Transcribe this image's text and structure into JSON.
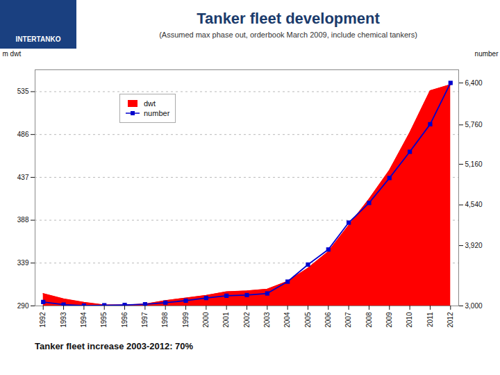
{
  "chart_data": {
    "type": "line",
    "title": "Tanker fleet development",
    "subtitle": "(Assumed max phase out, orderbook March 2009, include chemical  tankers)",
    "annotations": [
      "INTERTANKO",
      "Tanker fleet increase 2003-2012: 70%"
    ],
    "ylabel": "m dwt",
    "y2label": "number",
    "x": [
      1992,
      1993,
      1994,
      1995,
      1996,
      1997,
      1998,
      1999,
      2000,
      2001,
      2002,
      2003,
      2004,
      2005,
      2006,
      2007,
      2008,
      2009,
      2010,
      2011,
      2012
    ],
    "xlim": [
      1991.6,
      2012.4
    ],
    "xticks": [
      1992,
      1993,
      1994,
      1995,
      1996,
      1997,
      1998,
      1999,
      2000,
      2001,
      2002,
      2003,
      2004,
      2005,
      2006,
      2007,
      2008,
      2009,
      2010,
      2011,
      2012
    ],
    "ylim": [
      290,
      560
    ],
    "yticks": [
      290,
      339,
      388,
      437,
      486,
      535
    ],
    "y2lim": [
      3000,
      6600
    ],
    "y2ticks": [
      {
        "value": 3000,
        "label": "3,000"
      },
      {
        "value": 3920,
        "label": "3,920"
      },
      {
        "value": 4540,
        "label": "4,540"
      },
      {
        "value": 5160,
        "label": "5,160"
      },
      {
        "value": 5760,
        "label": "5,760"
      },
      {
        "value": 6400,
        "label": "6,400"
      }
    ],
    "grid": true,
    "legend": "upper left",
    "series": [
      {
        "name": "dwt",
        "type": "area",
        "color": "#ff0000",
        "values": [
          304,
          298,
          294,
          291,
          291,
          292,
          296,
          299,
          302,
          306,
          307,
          309,
          318,
          333,
          352,
          382,
          412,
          445,
          488,
          536,
          543
        ]
      },
      {
        "name": "number",
        "type": "line",
        "color": "#0000cc",
        "marker": "square",
        "axis": "y2",
        "values": [
          3060,
          3020,
          3005,
          3010,
          3015,
          3025,
          3050,
          3080,
          3120,
          3155,
          3165,
          3190,
          3370,
          3630,
          3860,
          4270,
          4570,
          4950,
          5350,
          5770,
          6400
        ]
      }
    ]
  }
}
